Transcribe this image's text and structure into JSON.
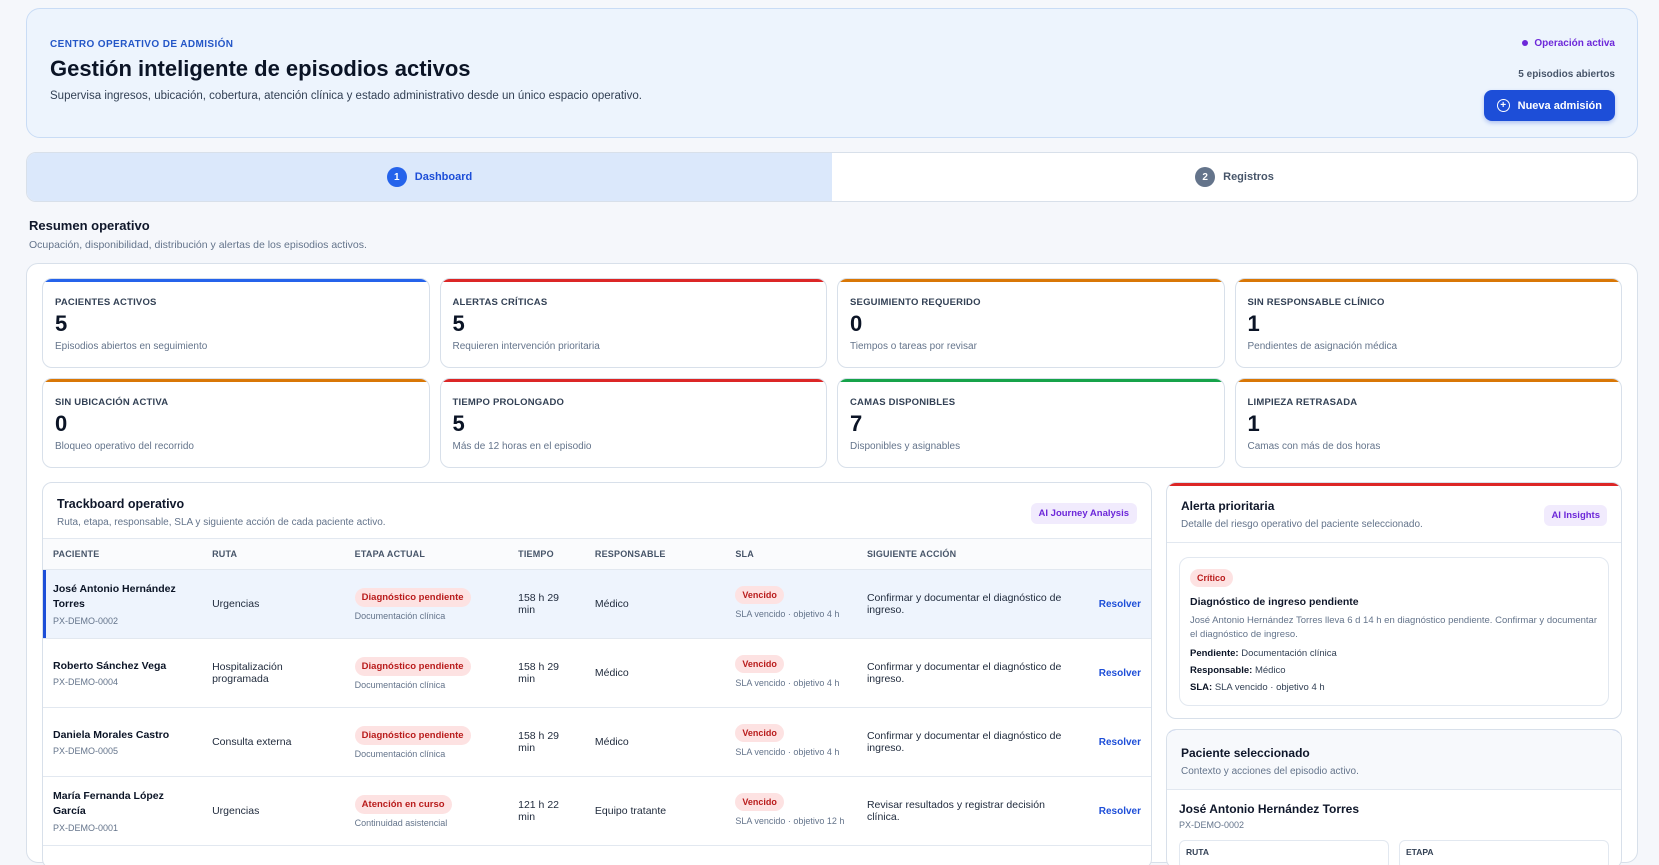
{
  "header": {
    "eyebrow": "CENTRO OPERATIVO DE ADMISIÓN",
    "title": "Gestión inteligente de episodios activos",
    "subtitle": "Supervisa ingresos, ubicación, cobertura, atención clínica y estado administrativo desde un único espacio operativo.",
    "status": "Operación activa",
    "open_episodes": "5 episodios abiertos",
    "new_admission": "Nueva admisión",
    "status_color": "#6d28d9",
    "accent": "#1d4ed8"
  },
  "tabs": [
    {
      "num": "1",
      "label": "Dashboard"
    },
    {
      "num": "2",
      "label": "Registros"
    }
  ],
  "summary": {
    "title": "Resumen operativo",
    "subtitle": "Ocupación, disponibilidad, distribución y alertas de los episodios activos."
  },
  "kpis": [
    {
      "label": "PACIENTES ACTIVOS",
      "value": "5",
      "desc": "Episodios abiertos en seguimiento",
      "color": "#2563eb"
    },
    {
      "label": "ALERTAS CRÍTICAS",
      "value": "5",
      "desc": "Requieren intervención prioritaria",
      "color": "#dc2626"
    },
    {
      "label": "SEGUIMIENTO REQUERIDO",
      "value": "0",
      "desc": "Tiempos o tareas por revisar",
      "color": "#d97706"
    },
    {
      "label": "SIN RESPONSABLE CLÍNICO",
      "value": "1",
      "desc": "Pendientes de asignación médica",
      "color": "#d97706"
    },
    {
      "label": "SIN UBICACIÓN ACTIVA",
      "value": "0",
      "desc": "Bloqueo operativo del recorrido",
      "color": "#d97706"
    },
    {
      "label": "TIEMPO PROLONGADO",
      "value": "5",
      "desc": "Más de 12 horas en el episodio",
      "color": "#dc2626"
    },
    {
      "label": "CAMAS DISPONIBLES",
      "value": "7",
      "desc": "Disponibles y asignables",
      "color": "#16a34a"
    },
    {
      "label": "LIMPIEZA RETRASADA",
      "value": "1",
      "desc": "Camas con más de dos horas",
      "color": "#d97706"
    }
  ],
  "trackboard": {
    "title": "Trackboard operativo",
    "subtitle": "Ruta, etapa, responsable, SLA y siguiente acción de cada paciente activo.",
    "ai_chip": "AI Journey Analysis",
    "columns": [
      "PACIENTE",
      "RUTA",
      "ETAPA ACTUAL",
      "TIEMPO",
      "RESPONSABLE",
      "SLA",
      "SIGUIENTE ACCIÓN",
      ""
    ],
    "rows": [
      {
        "name": "José Antonio Hernández Torres",
        "id": "PX-DEMO-0002",
        "route": "Urgencias",
        "stage": "Diagnóstico pendiente",
        "stage_sub": "Documentación clínica",
        "time": "158 h 29 min",
        "owner": "Médico",
        "sla": "Vencido",
        "sla_sub": "SLA vencido · objetivo 4 h",
        "action": "Confirmar y documentar el diagnóstico de ingreso.",
        "resolve": "Resolver"
      },
      {
        "name": "Roberto Sánchez Vega",
        "id": "PX-DEMO-0004",
        "route": "Hospitalización programada",
        "stage": "Diagnóstico pendiente",
        "stage_sub": "Documentación clínica",
        "time": "158 h 29 min",
        "owner": "Médico",
        "sla": "Vencido",
        "sla_sub": "SLA vencido · objetivo 4 h",
        "action": "Confirmar y documentar el diagnóstico de ingreso.",
        "resolve": "Resolver"
      },
      {
        "name": "Daniela Morales Castro",
        "id": "PX-DEMO-0005",
        "route": "Consulta externa",
        "stage": "Diagnóstico pendiente",
        "stage_sub": "Documentación clínica",
        "time": "158 h 29 min",
        "owner": "Médico",
        "sla": "Vencido",
        "sla_sub": "SLA vencido · objetivo 4 h",
        "action": "Confirmar y documentar el diagnóstico de ingreso.",
        "resolve": "Resolver"
      },
      {
        "name": "María Fernanda López García",
        "id": "PX-DEMO-0001",
        "route": "Urgencias",
        "stage": "Atención en curso",
        "stage_sub": "Continuidad asistencial",
        "time": "121 h 22 min",
        "owner": "Equipo tratante",
        "sla": "Vencido",
        "sla_sub": "SLA vencido · objetivo 12 h",
        "action": "Revisar resultados y registrar decisión clínica.",
        "resolve": "Resolver"
      }
    ]
  },
  "alert": {
    "title": "Alerta prioritaria",
    "subtitle": "Detalle del riesgo operativo del paciente seleccionado.",
    "ai_chip": "AI Insights",
    "badge": "Crítico",
    "headline": "Diagnóstico de ingreso pendiente",
    "description": "José Antonio Hernández Torres lleva 6 d 14 h en diagnóstico pendiente. Confirmar y documentar el diagnóstico de ingreso.",
    "pending_label": "Pendiente:",
    "pending_value": "Documentación clínica",
    "owner_label": "Responsable:",
    "owner_value": "Médico",
    "sla_label": "SLA:",
    "sla_value": "SLA vencido · objetivo 4 h"
  },
  "patient": {
    "title": "Paciente seleccionado",
    "subtitle": "Contexto y acciones del episodio activo.",
    "name": "José Antonio Hernández Torres",
    "id": "PX-DEMO-0002",
    "field1": "RUTA",
    "field2": "ETAPA"
  }
}
